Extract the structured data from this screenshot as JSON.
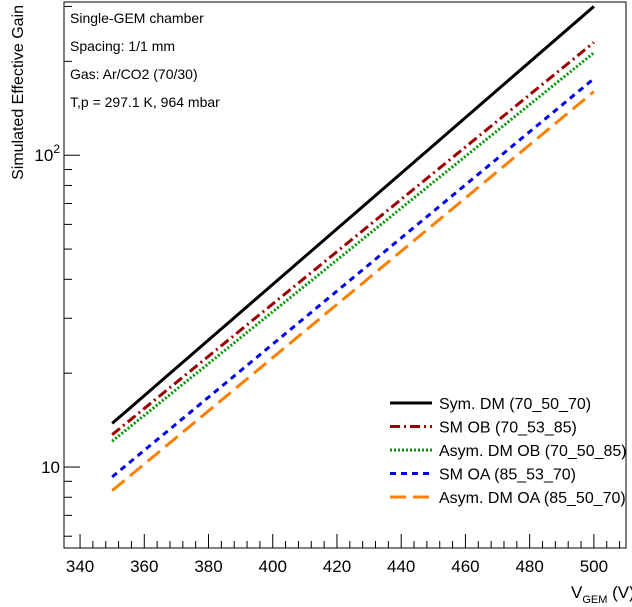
{
  "chart_data": {
    "type": "line",
    "ylabel": "Simulated Effective Gain",
    "xlabel_main": "V",
    "xlabel_sub": "GEM",
    "xlabel_unit": " (V)",
    "xlim": [
      335,
      510
    ],
    "ylim": [
      5.5,
      310
    ],
    "yscale": "log",
    "x_ticks": [
      "340",
      "360",
      "380",
      "400",
      "420",
      "440",
      "460",
      "480",
      "500"
    ],
    "y_tick_labels": [
      {
        "base": "10",
        "exp": ""
      },
      {
        "base": "10",
        "exp": "2"
      }
    ],
    "annotations": [
      "Single-GEM chamber",
      "Spacing: 1/1 mm",
      "Gas: Ar/CO2 (70/30)",
      "T,p = 297.1 K, 964 mbar"
    ],
    "legend_position": "bottom-right",
    "series": [
      {
        "name": "Sym. DM (70_50_70)",
        "x": [
          350,
          500
        ],
        "y": [
          13.8,
          300
        ],
        "color": "#000000",
        "dash": ""
      },
      {
        "name": "SM OB (70_53_85)",
        "x": [
          350,
          500
        ],
        "y": [
          12.7,
          230
        ],
        "color": "#990000",
        "dash": "10,4,2,4"
      },
      {
        "name": "Asym. DM OB (70_50_85)",
        "x": [
          350,
          500
        ],
        "y": [
          12.1,
          213
        ],
        "color": "#009900",
        "dash": "2,2"
      },
      {
        "name": "SM OA (85_53_70)",
        "x": [
          350,
          500
        ],
        "y": [
          9.3,
          176
        ],
        "color": "#0000ee",
        "dash": "6,5"
      },
      {
        "name": "Asym. DM OA (85_50_70)",
        "x": [
          350,
          500
        ],
        "y": [
          8.4,
          160
        ],
        "color": "#ff8000",
        "dash": "16,7"
      }
    ]
  }
}
